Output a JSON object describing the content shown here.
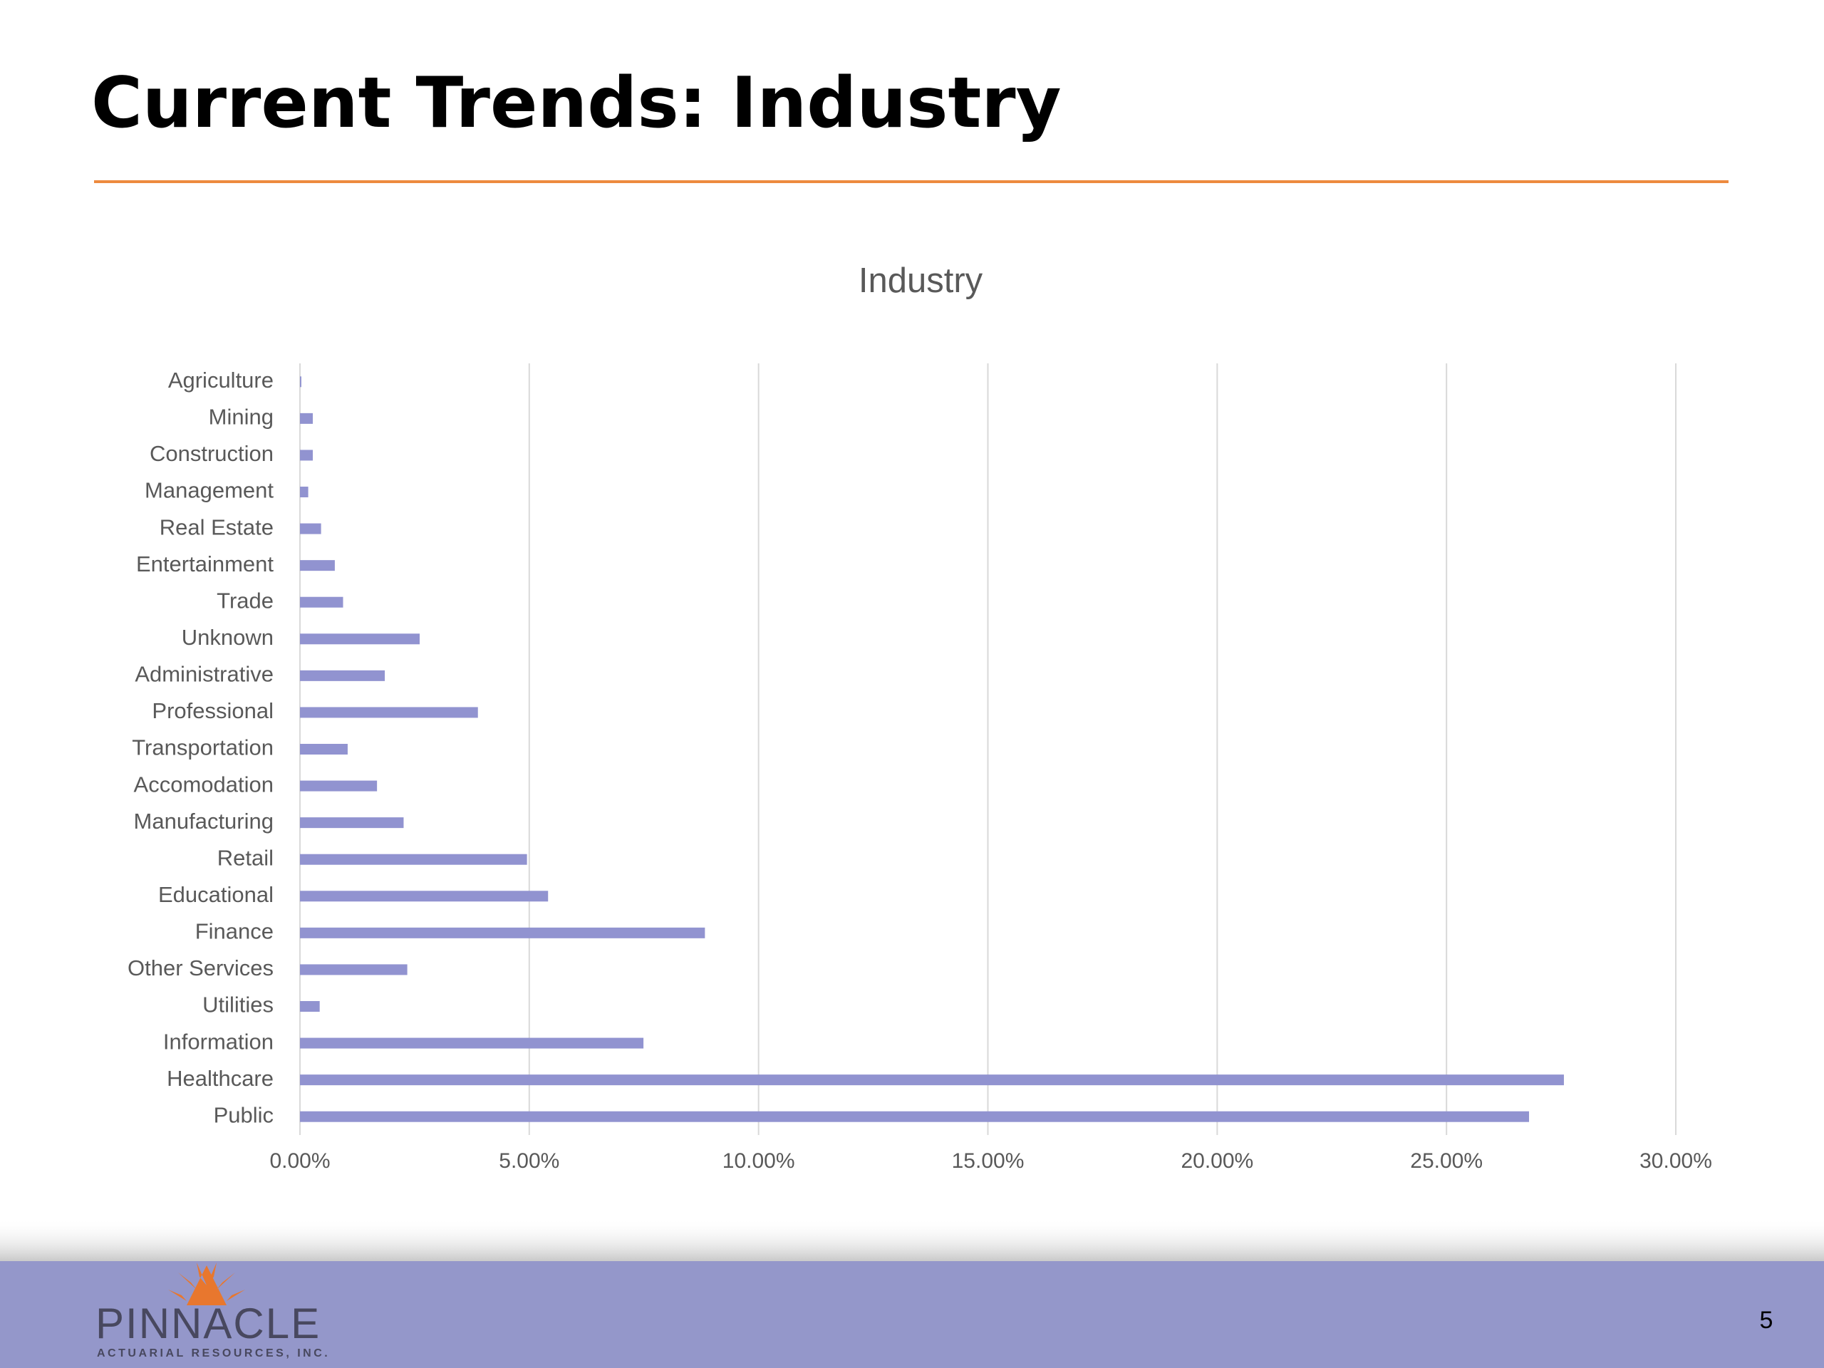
{
  "slide": {
    "title": "Current Trends: Industry",
    "page_number": "5"
  },
  "logo": {
    "name": "PINNACLE",
    "tagline": "ACTUARIAL RESOURCES, INC."
  },
  "chart_data": {
    "type": "hbar",
    "title": "Industry",
    "categories": [
      "Agriculture",
      "Mining",
      "Construction",
      "Management",
      "Real Estate",
      "Entertainment",
      "Trade",
      "Unknown",
      "Administrative",
      "Professional",
      "Transportation",
      "Accomodation",
      "Manufacturing",
      "Retail",
      "Educational",
      "Finance",
      "Other Services",
      "Utilities",
      "Information",
      "Healthcare",
      "Public"
    ],
    "values": [
      0.03,
      0.28,
      0.28,
      0.18,
      0.46,
      0.76,
      0.94,
      2.61,
      1.85,
      3.88,
      1.04,
      1.68,
      2.26,
      4.95,
      5.41,
      8.83,
      2.34,
      0.43,
      7.49,
      27.56,
      26.8
    ],
    "color": "#9193d0",
    "xlim": [
      0,
      30
    ],
    "xticks": [
      {
        "value": 0,
        "label": "0.00%"
      },
      {
        "value": 5,
        "label": "5.00%"
      },
      {
        "value": 10,
        "label": "10.00%"
      },
      {
        "value": 15,
        "label": "15.00%"
      },
      {
        "value": 20,
        "label": "20.00%"
      },
      {
        "value": 25,
        "label": "25.00%"
      },
      {
        "value": 30,
        "label": "30.00%"
      }
    ],
    "grid": true
  }
}
